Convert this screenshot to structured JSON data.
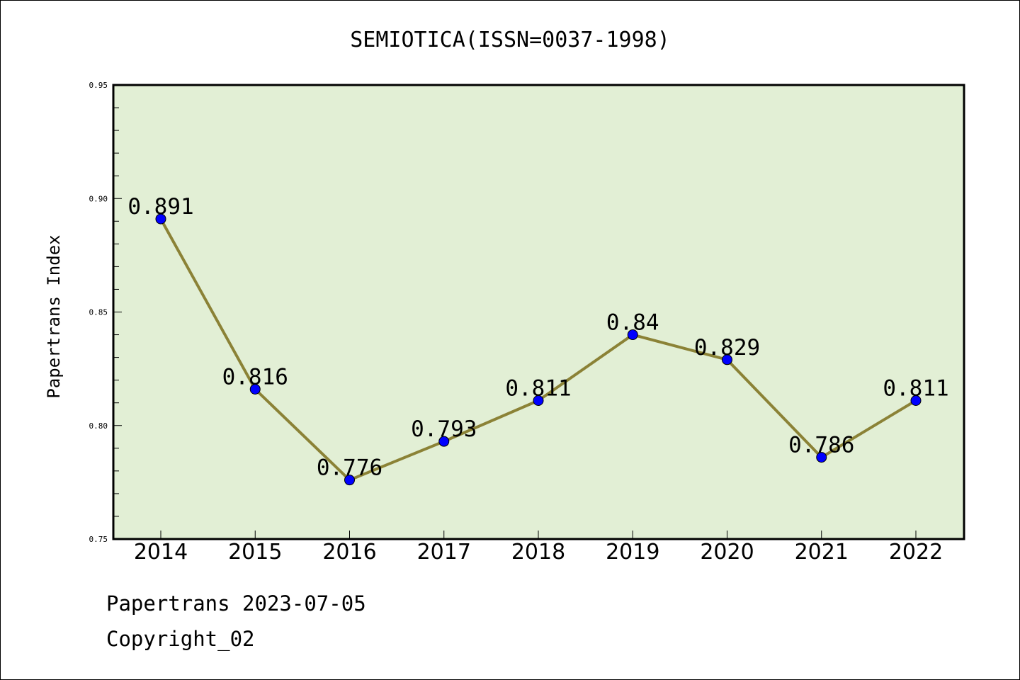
{
  "chart_data": {
    "type": "line",
    "title": "SEMIOTICA(ISSN=0037-1998)",
    "xlabel": "",
    "ylabel": "Papertrans Index",
    "categories": [
      "2014",
      "2015",
      "2016",
      "2017",
      "2018",
      "2019",
      "2020",
      "2021",
      "2022"
    ],
    "series": [
      {
        "values": [
          0.891,
          0.816,
          0.776,
          0.793,
          0.811,
          0.84,
          0.829,
          0.786,
          0.811
        ],
        "data_labels": [
          "0.891",
          "0.816",
          "0.776",
          "0.793",
          "0.811",
          "0.84",
          "0.829",
          "0.786",
          "0.811"
        ],
        "line_color": "#8B8236",
        "marker_color": "#0000FF"
      }
    ],
    "ylim": [
      0.75,
      0.95
    ],
    "yticks": [
      "0.75",
      "0.80",
      "0.85",
      "0.90",
      "0.95"
    ],
    "plot_background": "#E2EFD5",
    "grid": false,
    "legend": "none"
  },
  "footer": {
    "line1": "Papertrans 2023-07-05",
    "line2": "Copyright_02"
  }
}
